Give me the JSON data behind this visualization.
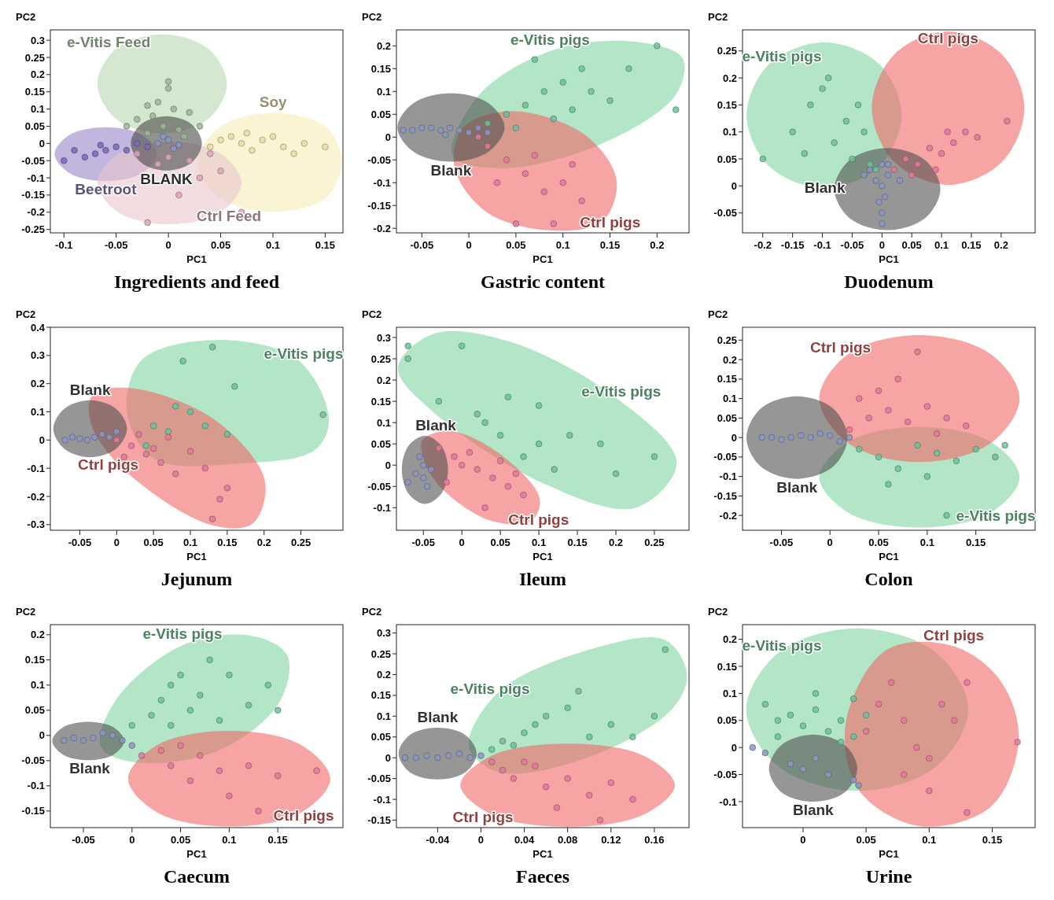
{
  "chart_data": [
    {
      "type": "scatter",
      "title": "Ingredients and feed",
      "xlabel": "PC1",
      "ylabel": "PC2",
      "xlim": [
        -0.113,
        0.167
      ],
      "ylim": [
        -0.26,
        0.33
      ],
      "xticks": [
        -0.1,
        -0.05,
        0,
        0.05,
        0.1,
        0.15
      ],
      "yticks": [
        -0.25,
        -0.2,
        -0.15,
        -0.1,
        -0.05,
        0,
        0.05,
        0.1,
        0.15,
        0.2,
        0.25,
        0.3
      ],
      "series": [
        {
          "type": "area",
          "name": "e-Vitis Feed",
          "color": "#b8d8b0",
          "x": [
            -0.05,
            -0.068,
            -0.05,
            -0.006,
            0.038,
            0.056,
            0.038,
            -0.006
          ],
          "values": [
            0.275,
            0.173,
            0.071,
            0.029,
            0.071,
            0.173,
            0.275,
            0.317
          ]
        },
        {
          "type": "area",
          "name": "Soy",
          "color": "#f8ecb8",
          "x": [
            0.1,
            0.049,
            0.028,
            0.049,
            0.1,
            0.151,
            0.166,
            0.151
          ],
          "values": [
            0.089,
            0.047,
            -0.055,
            -0.157,
            -0.199,
            -0.157,
            -0.055,
            0.047
          ]
        },
        {
          "type": "area",
          "name": "Beetroot",
          "color": "#9b86c8",
          "x": [
            -0.06,
            -0.025,
            -0.011,
            -0.025,
            -0.06,
            -0.095,
            -0.109,
            -0.095
          ],
          "values": [
            -0.109,
            -0.086,
            -0.031,
            0.024,
            0.047,
            0.024,
            -0.031,
            -0.086
          ]
        },
        {
          "type": "area",
          "name": "Ctrl Feed",
          "color": "#e8c4cc",
          "x": [
            0.05,
            0.07,
            0.05,
            0.001,
            -0.048,
            -0.068,
            -0.048,
            0.001
          ],
          "values": [
            -0.2,
            -0.115,
            -0.03,
            0.005,
            -0.03,
            -0.115,
            -0.2,
            -0.235
          ]
        },
        {
          "type": "area",
          "name": "BLANK",
          "color": "#4a4a4a",
          "x": [
            -0.002,
            0.022,
            0.032,
            0.022,
            -0.002,
            -0.026,
            -0.036,
            -0.026
          ],
          "values": [
            -0.079,
            -0.056,
            0,
            0.056,
            0.079,
            0.056,
            0,
            -0.056
          ]
        },
        {
          "marker": "circle",
          "color": "#9fb49a",
          "x": [
            -0.01,
            0,
            -0.015,
            0.005,
            -0.03,
            0.02,
            -0.005,
            0.01,
            -0.02,
            0.03,
            -0.04,
            0,
            -0.02,
            0.015
          ],
          "values": [
            0.12,
            0.16,
            0.08,
            0.1,
            0.07,
            0.09,
            0.05,
            0.04,
            0.03,
            0.05,
            0.05,
            0.18,
            0.11,
            0.02
          ]
        },
        {
          "marker": "circle",
          "color": "#e6dca8",
          "x": [
            0.05,
            0.07,
            0.09,
            0.11,
            0.13,
            0.08,
            0.06,
            0.1,
            0.12,
            0.15,
            0.04,
            0.075
          ],
          "values": [
            0.01,
            0,
            0.01,
            -0.01,
            0,
            -0.02,
            0.02,
            0.02,
            -0.03,
            -0.01,
            -0.01,
            0.03
          ]
        },
        {
          "marker": "circle",
          "color": "#7a68b8",
          "x": [
            -0.1,
            -0.08,
            -0.07,
            -0.06,
            -0.05,
            -0.04,
            -0.03,
            -0.09,
            -0.065,
            -0.02
          ],
          "values": [
            -0.05,
            -0.04,
            -0.03,
            -0.02,
            -0.01,
            -0.02,
            0,
            -0.02,
            -0.005,
            -0.01
          ]
        },
        {
          "marker": "circle",
          "color": "#d8a8b8",
          "x": [
            -0.02,
            0.01,
            0.03,
            -0.01,
            0.02,
            0.05,
            0.07,
            -0.03,
            0,
            0.04
          ],
          "values": [
            -0.23,
            -0.15,
            -0.1,
            -0.06,
            -0.05,
            -0.08,
            -0.2,
            -0.03,
            -0.04,
            -0.03
          ]
        },
        {
          "marker": "circle",
          "color": "#8c95c0",
          "x": [
            -0.01,
            0,
            0.01,
            -0.005,
            0.005
          ],
          "values": [
            0,
            0.01,
            -0.005,
            0.02,
            -0.015
          ]
        }
      ]
    },
    {
      "type": "scatter",
      "title": "Gastric content",
      "xlabel": "PC1",
      "ylabel": "PC2",
      "xlim": [
        -0.077,
        0.234
      ],
      "ylim": [
        -0.21,
        0.235
      ],
      "xticks": [
        -0.05,
        0,
        0.05,
        0.1,
        0.15,
        0.2
      ],
      "yticks": [
        -0.2,
        -0.15,
        -0.1,
        -0.05,
        0,
        0.05,
        0.1,
        0.15,
        0.2
      ],
      "series": [
        {
          "type": "area",
          "name": "e-Vitis pigs",
          "color": "#7fd6a0",
          "x": [
            0.09,
            0.011,
            -0.017,
            0.037,
            0.142,
            0.22,
            0.227,
            0.177
          ],
          "values": [
            0.191,
            0.093,
            -0.041,
            -0.068,
            -0.014,
            0.093,
            0.173,
            0.209
          ]
        },
        {
          "type": "area",
          "name": "Ctrl pigs",
          "color": "#f06868",
          "x": [
            0.142,
            0.09,
            0.02,
            -0.015,
            -0.006,
            0.046,
            0.124,
            0.157
          ],
          "values": [
            -0.184,
            -0.205,
            -0.166,
            -0.068,
            0.021,
            0.057,
            0.004,
            -0.095
          ]
        },
        {
          "type": "area",
          "name": "Blank",
          "color": "#505050",
          "x": [
            -0.019,
            0.021,
            0.038,
            0.021,
            -0.019,
            -0.059,
            -0.076,
            -0.059
          ],
          "values": [
            -0.054,
            -0.032,
            0.021,
            0.074,
            0.096,
            0.074,
            0.021,
            -0.032
          ]
        },
        {
          "marker": "circle",
          "color": "#8c95c0",
          "x": [
            -0.07,
            -0.06,
            -0.05,
            -0.04,
            -0.03,
            -0.02,
            -0.01,
            0,
            0.01,
            -0.025,
            0.02
          ],
          "values": [
            0.015,
            0.015,
            0.02,
            0.02,
            0.015,
            0.02,
            0.015,
            0.01,
            0.02,
            0.005,
            0.01
          ]
        },
        {
          "marker": "circle",
          "color": "#6fbf9a",
          "x": [
            0.02,
            0.04,
            0.06,
            0.08,
            0.1,
            0.13,
            0.15,
            0.17,
            0.2,
            0.22,
            0.12,
            0.09,
            0.05,
            0.11,
            0.07
          ],
          "values": [
            0.03,
            0.05,
            0.07,
            0.1,
            0.12,
            0.1,
            0.08,
            0.15,
            0.2,
            0.06,
            0.15,
            0.04,
            0.02,
            0.06,
            0.17
          ]
        },
        {
          "marker": "circle",
          "color": "#e07a9a",
          "x": [
            0.02,
            0.04,
            0.06,
            0.08,
            0.1,
            0.12,
            0.05,
            0.09,
            0.03,
            0.07,
            0.01,
            0.11
          ],
          "values": [
            -0.02,
            -0.05,
            -0.08,
            -0.12,
            -0.1,
            -0.14,
            -0.19,
            -0.19,
            -0.1,
            -0.04,
            0,
            -0.06
          ]
        }
      ]
    },
    {
      "type": "scatter",
      "title": "Duodenum",
      "xlabel": "PC1",
      "ylabel": "PC2",
      "xlim": [
        -0.234,
        0.257
      ],
      "ylim": [
        -0.087,
        0.289
      ],
      "xticks": [
        -0.2,
        -0.15,
        -0.1,
        -0.05,
        0,
        0.05,
        0.1,
        0.15,
        0.2
      ],
      "yticks": [
        -0.05,
        0,
        0.05,
        0.1,
        0.15,
        0.2,
        0.25
      ],
      "series": [
        {
          "type": "area",
          "name": "e-Vitis pigs",
          "color": "#7fd6a0",
          "x": [
            -0.189,
            -0.227,
            -0.189,
            -0.097,
            -0.005,
            0.033,
            -0.005,
            -0.097
          ],
          "values": [
            0.226,
            0.131,
            0.036,
            -0.004,
            0.036,
            0.131,
            0.226,
            0.266
          ]
        },
        {
          "type": "area",
          "name": "Ctrl pigs",
          "color": "#f06868",
          "x": [
            0.111,
            0.021,
            -0.017,
            0.021,
            0.111,
            0.201,
            0.239,
            0.201
          ],
          "values": [
            0.286,
            0.244,
            0.144,
            0.044,
            0.002,
            0.044,
            0.144,
            0.244
          ]
        },
        {
          "type": "area",
          "name": "Blank",
          "color": "#505050",
          "x": [
            -0.08,
            -0.054,
            0.009,
            0.072,
            0.098,
            0.072,
            0.009,
            -0.054
          ],
          "values": [
            -0.006,
            -0.06,
            -0.082,
            -0.06,
            -0.006,
            0.048,
            0.07,
            0.048
          ]
        },
        {
          "marker": "circle",
          "color": "#8c95c0",
          "x": [
            0,
            0,
            -0.005,
            0.005,
            0,
            -0.01,
            0.01,
            -0.02,
            0.01,
            0,
            -0.03,
            0.03
          ],
          "values": [
            -0.07,
            -0.05,
            -0.03,
            -0.02,
            0,
            0.01,
            0.02,
            0.03,
            0.04,
            0.04,
            0.02,
            0.01
          ]
        },
        {
          "marker": "circle",
          "color": "#6fbf9a",
          "x": [
            -0.2,
            -0.15,
            -0.12,
            -0.1,
            -0.08,
            -0.06,
            -0.05,
            -0.03,
            -0.02,
            -0.09,
            -0.13,
            -0.04,
            -0.01
          ],
          "values": [
            0.05,
            0.1,
            0.15,
            0.18,
            0.08,
            0.12,
            0.05,
            0.1,
            0.04,
            0.2,
            0.06,
            0.15,
            0.03
          ]
        },
        {
          "marker": "circle",
          "color": "#e07a9a",
          "x": [
            0.02,
            0.04,
            0.06,
            0.08,
            0.1,
            0.12,
            0.14,
            0.16,
            0.21,
            0.05,
            0.09,
            0.11
          ],
          "values": [
            0.03,
            0.05,
            0.04,
            0.07,
            0.06,
            0.08,
            0.1,
            0.09,
            0.12,
            0.02,
            0.03,
            0.1
          ]
        }
      ]
    },
    {
      "type": "scatter",
      "title": "Jejunum",
      "xlabel": "PC1",
      "ylabel": "PC2",
      "xlim": [
        -0.09,
        0.307
      ],
      "ylim": [
        -0.32,
        0.4
      ],
      "xticks": [
        -0.05,
        0,
        0.05,
        0.1,
        0.15,
        0.2,
        0.25
      ],
      "yticks": [
        -0.3,
        -0.2,
        -0.1,
        0,
        0.1,
        0.2,
        0.3,
        0.4
      ],
      "series": [
        {
          "type": "area",
          "name": "e-Vitis pigs",
          "color": "#7fd6a0",
          "x": [
            0.246,
            0.134,
            0.034,
            0.014,
            0.051,
            0.168,
            0.268,
            0.288
          ],
          "values": [
            0.284,
            0.355,
            0.284,
            0.101,
            -0.067,
            -0.083,
            -0.037,
            0.07
          ]
        },
        {
          "type": "area",
          "name": "Ctrl pigs",
          "color": "#f06868",
          "x": [
            0.001,
            -0.036,
            -0.032,
            0.023,
            0.134,
            0.201,
            0.184,
            0.123
          ],
          "values": [
            -0.083,
            0.07,
            0.162,
            0.183,
            0.07,
            -0.144,
            -0.297,
            -0.297
          ]
        },
        {
          "type": "area",
          "name": "Blank",
          "color": "#505050",
          "x": [
            -0.036,
            -0.071,
            -0.086,
            -0.071,
            -0.036,
            -0.001,
            0.014,
            -0.001
          ],
          "values": [
            0.141,
            0.111,
            0.04,
            -0.031,
            -0.061,
            -0.031,
            0.04,
            0.111
          ]
        },
        {
          "marker": "circle",
          "color": "#8c95c0",
          "x": [
            -0.07,
            -0.06,
            -0.04,
            -0.03,
            -0.02,
            -0.01,
            0,
            -0.05
          ],
          "values": [
            0,
            0.01,
            0,
            0.01,
            0.02,
            0.01,
            0.03,
            0.005
          ]
        },
        {
          "marker": "circle",
          "color": "#6fbf9a",
          "x": [
            0.05,
            0.09,
            0.13,
            0.16,
            0.28,
            0.1,
            0.07,
            0.12,
            0.15,
            0.04,
            0.08
          ],
          "values": [
            0.05,
            0.28,
            0.33,
            0.19,
            0.09,
            0.1,
            0.03,
            0.05,
            0.02,
            -0.02,
            0.12
          ]
        },
        {
          "marker": "circle",
          "color": "#e07a9a",
          "x": [
            0,
            0.02,
            0.04,
            0.03,
            0.06,
            0.08,
            0.1,
            0.12,
            0.15,
            0.14,
            0.05,
            0.01,
            0.07,
            0.13
          ],
          "values": [
            0,
            -0.02,
            -0.05,
            0.02,
            -0.08,
            -0.12,
            -0.04,
            -0.1,
            -0.17,
            -0.21,
            -0.03,
            -0.06,
            0.01,
            -0.28
          ]
        }
      ]
    },
    {
      "type": "scatter",
      "title": "Ileum",
      "xlabel": "PC1",
      "ylabel": "PC2",
      "xlim": [
        -0.085,
        0.295
      ],
      "ylim": [
        -0.153,
        0.324
      ],
      "xticks": [
        -0.05,
        0,
        0.05,
        0.1,
        0.15,
        0.2,
        0.25
      ],
      "yticks": [
        -0.1,
        -0.05,
        0,
        0.05,
        0.1,
        0.15,
        0.2,
        0.25,
        0.3
      ],
      "series": [
        {
          "type": "area",
          "name": "e-Vitis pigs",
          "color": "#7fd6a0",
          "x": [
            0.195,
            0.279,
            0.226,
            0.111,
            -0.036,
            -0.083,
            -0.036,
            0.059
          ],
          "values": [
            0.165,
            0.006,
            -0.1,
            -0.047,
            0.123,
            0.229,
            0.309,
            0.292
          ]
        },
        {
          "type": "area",
          "name": "Ctrl pigs",
          "color": "#f06868",
          "x": [
            0.09,
            0.038,
            -0.025,
            -0.048,
            -0.051,
            -0.015,
            0.048,
            0.101
          ],
          "values": [
            -0.131,
            -0.131,
            -0.057,
            0.006,
            0.059,
            0.08,
            0.028,
            -0.078
          ]
        },
        {
          "type": "area",
          "name": "Blank",
          "color": "#505050",
          "x": [
            -0.048,
            -0.069,
            -0.078,
            -0.069,
            -0.048,
            -0.027,
            -0.018,
            -0.027
          ],
          "values": [
            0.069,
            0.046,
            -0.011,
            -0.068,
            -0.091,
            -0.068,
            -0.011,
            0.046
          ]
        },
        {
          "marker": "circle",
          "color": "#8c95c0",
          "x": [
            -0.06,
            -0.05,
            -0.04,
            -0.05,
            -0.07,
            -0.045,
            -0.055
          ],
          "values": [
            -0.02,
            -0.03,
            -0.01,
            0,
            -0.04,
            -0.05,
            0.02
          ]
        },
        {
          "marker": "circle",
          "color": "#6fbf9a",
          "x": [
            -0.07,
            -0.07,
            0,
            -0.03,
            0.02,
            0.06,
            0.1,
            0.14,
            0.18,
            0.25,
            0.2,
            0.05,
            0.08,
            0.12,
            0.03,
            0.1
          ],
          "values": [
            0.28,
            0.25,
            0.28,
            0.15,
            0.12,
            0.16,
            0.05,
            0.07,
            0.05,
            0.02,
            -0.02,
            0.07,
            0.02,
            -0.01,
            0.1,
            0.14
          ]
        },
        {
          "marker": "circle",
          "color": "#e07a9a",
          "x": [
            -0.03,
            -0.01,
            0,
            0.02,
            0.04,
            0.06,
            0.08,
            0.03,
            0.05,
            -0.02,
            0.01,
            0.07
          ],
          "values": [
            0.04,
            0.02,
            0,
            -0.01,
            -0.03,
            -0.05,
            -0.07,
            -0.1,
            0.01,
            -0.04,
            0.03,
            -0.02
          ]
        }
      ]
    },
    {
      "type": "scatter",
      "title": "Colon",
      "xlabel": "PC1",
      "ylabel": "PC2",
      "xlim": [
        -0.09,
        0.211
      ],
      "ylim": [
        -0.238,
        0.283
      ],
      "xticks": [
        -0.05,
        0,
        0.05,
        0.1,
        0.15
      ],
      "yticks": [
        -0.2,
        -0.15,
        -0.1,
        -0.05,
        0,
        0.05,
        0.1,
        0.15,
        0.2,
        0.25
      ],
      "series": [
        {
          "type": "area",
          "name": "e-Vitis pigs",
          "color": "#7fd6a0",
          "x": [
            0.165,
            0.195,
            0.165,
            0.092,
            0.019,
            -0.011,
            0.019,
            0.092
          ],
          "values": [
            -0.193,
            -0.102,
            -0.011,
            0.027,
            -0.011,
            -0.102,
            -0.193,
            -0.231
          ]
        },
        {
          "type": "area",
          "name": "Ctrl pigs",
          "color": "#f06868",
          "x": [
            0.019,
            -0.011,
            0.019,
            0.092,
            0.165,
            0.195,
            0.165,
            0.092
          ],
          "values": [
            0.215,
            0.1,
            -0.015,
            -0.063,
            -0.015,
            0.1,
            0.215,
            0.263
          ]
        },
        {
          "type": "area",
          "name": "Blank",
          "color": "#505050",
          "x": [
            -0.034,
            0.003,
            0.018,
            0.003,
            -0.034,
            -0.071,
            -0.086,
            -0.071
          ],
          "values": [
            -0.106,
            -0.075,
            0,
            0.075,
            0.106,
            0.075,
            0,
            -0.075
          ]
        },
        {
          "marker": "circle",
          "color": "#8c95c0",
          "x": [
            -0.07,
            -0.06,
            -0.05,
            -0.04,
            -0.03,
            -0.02,
            -0.01,
            0,
            0.01,
            0.02
          ],
          "values": [
            0,
            0,
            -0.005,
            0,
            0.005,
            0,
            0.01,
            0.005,
            -0.01,
            0
          ]
        },
        {
          "marker": "circle",
          "color": "#e07a9a",
          "x": [
            0.02,
            0.04,
            0.06,
            0.03,
            0.08,
            0.1,
            0.12,
            0.07,
            0.09,
            0.05,
            0.11,
            0.14
          ],
          "values": [
            0.02,
            0.05,
            0.07,
            0.1,
            0.04,
            0.08,
            0.05,
            0.15,
            0.22,
            0.12,
            0.01,
            0.03
          ]
        },
        {
          "marker": "circle",
          "color": "#6fbf9a",
          "x": [
            0.03,
            0.05,
            0.07,
            0.09,
            0.11,
            0.13,
            0.15,
            0.18,
            0.1,
            0.12,
            0.06,
            0.17
          ],
          "values": [
            -0.03,
            -0.05,
            -0.08,
            -0.02,
            -0.04,
            -0.06,
            -0.03,
            -0.02,
            -0.1,
            -0.2,
            -0.12,
            -0.05
          ]
        }
      ]
    },
    {
      "type": "scatter",
      "title": "Caecum",
      "xlabel": "PC1",
      "ylabel": "PC2",
      "xlim": [
        -0.084,
        0.217
      ],
      "ylim": [
        -0.183,
        0.22
      ],
      "xticks": [
        -0.05,
        0,
        0.05,
        0.1,
        0.15
      ],
      "yticks": [
        -0.15,
        -0.1,
        -0.05,
        0,
        0.05,
        0.1,
        0.15,
        0.2
      ],
      "series": [
        {
          "type": "area",
          "name": "e-Vitis pigs",
          "color": "#7fd6a0",
          "x": [
            0.054,
            -0.016,
            -0.032,
            0.002,
            0.089,
            0.151,
            0.16,
            0.125
          ],
          "values": [
            0.181,
            0.072,
            -0.022,
            -0.053,
            -0.03,
            0.064,
            0.158,
            0.197
          ]
        },
        {
          "type": "area",
          "name": "Ctrl pigs",
          "color": "#f06868",
          "x": [
            0.174,
            0.204,
            0.174,
            0.1,
            0.026,
            -0.004,
            0.026,
            0.1
          ],
          "values": [
            -0.153,
            -0.086,
            -0.019,
            0.009,
            -0.019,
            -0.086,
            -0.153,
            -0.181
          ]
        },
        {
          "type": "area",
          "name": "Blank",
          "color": "#505050",
          "x": [
            -0.045,
            -0.019,
            -0.008,
            -0.019,
            -0.045,
            -0.071,
            -0.082,
            -0.071
          ],
          "values": [
            -0.049,
            -0.038,
            -0.011,
            0.016,
            0.027,
            0.016,
            -0.011,
            -0.038
          ]
        },
        {
          "marker": "circle",
          "color": "#8c95c0",
          "x": [
            -0.07,
            -0.06,
            -0.05,
            -0.04,
            -0.03,
            -0.02,
            -0.01,
            0
          ],
          "values": [
            -0.01,
            -0.005,
            -0.01,
            -0.005,
            0.005,
            0,
            -0.01,
            -0.02
          ]
        },
        {
          "marker": "circle",
          "color": "#6fbf9a",
          "x": [
            0,
            0.02,
            0.03,
            0.04,
            0.05,
            0.06,
            0.07,
            0.08,
            0.1,
            0.12,
            0.14,
            0.15,
            0.04,
            0.09
          ],
          "values": [
            0.02,
            0.04,
            0.07,
            0.1,
            0.12,
            0.05,
            0.08,
            0.15,
            0.12,
            0.06,
            0.1,
            0.05,
            0.02,
            0.03
          ]
        },
        {
          "marker": "circle",
          "color": "#e07a9a",
          "x": [
            0.01,
            0.03,
            0.05,
            0.04,
            0.07,
            0.09,
            0.12,
            0.15,
            0.1,
            0.13,
            0.19,
            0.06
          ],
          "values": [
            -0.04,
            -0.03,
            -0.02,
            -0.06,
            -0.04,
            -0.07,
            -0.06,
            -0.08,
            -0.12,
            -0.15,
            -0.07,
            -0.09
          ]
        }
      ]
    },
    {
      "type": "scatter",
      "title": "Faeces",
      "xlabel": "PC1",
      "ylabel": "PC2",
      "xlim": [
        -0.078,
        0.192
      ],
      "ylim": [
        -0.168,
        0.32
      ],
      "xticks": [
        -0.04,
        0,
        0.04,
        0.08,
        0.12,
        0.16
      ],
      "yticks": [
        -0.15,
        -0.1,
        -0.05,
        0,
        0.05,
        0.1,
        0.15,
        0.2,
        0.25,
        0.3
      ],
      "series": [
        {
          "type": "area",
          "name": "e-Vitis pigs",
          "color": "#7fd6a0",
          "x": [
            0.017,
            -0.011,
            0.017,
            0.104,
            0.177,
            0.19,
            0.17,
            0.104
          ],
          "values": [
            0.16,
            0.027,
            -0.035,
            0.006,
            0.119,
            0.201,
            0.283,
            0.263
          ]
        },
        {
          "type": "area",
          "name": "Ctrl pigs",
          "color": "#f06868",
          "x": [
            0.01,
            0.08,
            0.15,
            0.179,
            0.15,
            0.08,
            0.01,
            -0.019
          ],
          "values": [
            -0.137,
            -0.166,
            -0.137,
            -0.066,
            0.005,
            0.034,
            0.005,
            -0.066
          ]
        },
        {
          "type": "area",
          "name": "Blank",
          "color": "#505050",
          "x": [
            -0.04,
            -0.066,
            -0.076,
            -0.066,
            -0.04,
            -0.014,
            -0.004,
            -0.014
          ],
          "values": [
            0.072,
            0.054,
            0.01,
            -0.034,
            -0.052,
            -0.034,
            0.01,
            0.054
          ]
        },
        {
          "marker": "circle",
          "color": "#8c95c0",
          "x": [
            -0.07,
            -0.06,
            -0.05,
            -0.04,
            -0.03,
            -0.02,
            -0.01,
            0
          ],
          "values": [
            0,
            0,
            0.005,
            0,
            0.005,
            0.01,
            0,
            0.005
          ]
        },
        {
          "marker": "circle",
          "color": "#6fbf9a",
          "x": [
            0.01,
            0.02,
            0.04,
            0.05,
            0.06,
            0.08,
            0.1,
            0.12,
            0.14,
            0.16,
            0.17,
            0.09,
            0.03
          ],
          "values": [
            0.02,
            0.04,
            0.06,
            0.08,
            0.1,
            0.12,
            0.05,
            0.08,
            0.05,
            0.1,
            0.26,
            0.16,
            0.03
          ]
        },
        {
          "marker": "circle",
          "color": "#e07a9a",
          "x": [
            0.01,
            0.02,
            0.03,
            0.05,
            0.06,
            0.08,
            0.1,
            0.12,
            0.14,
            0.07,
            0.11,
            0.04
          ],
          "values": [
            -0.01,
            -0.03,
            -0.05,
            -0.02,
            -0.07,
            -0.05,
            -0.09,
            -0.06,
            -0.1,
            -0.12,
            -0.15,
            -0.01
          ]
        }
      ]
    },
    {
      "type": "scatter",
      "title": "Urine",
      "xlabel": "PC1",
      "ylabel": "PC2",
      "xlim": [
        -0.048,
        0.184
      ],
      "ylim": [
        -0.148,
        0.227
      ],
      "xticks": [
        0,
        0.05,
        0.1,
        0.15
      ],
      "yticks": [
        -0.1,
        -0.05,
        0,
        0.05,
        0.1,
        0.15,
        0.2
      ],
      "series": [
        {
          "type": "area",
          "name": "e-Vitis pigs",
          "color": "#7fd6a0",
          "x": [
            -0.019,
            -0.045,
            -0.019,
            0.043,
            0.105,
            0.131,
            0.105,
            0.043
          ],
          "values": [
            0.176,
            0.07,
            -0.036,
            -0.08,
            -0.036,
            0.07,
            0.176,
            0.22
          ]
        },
        {
          "type": "area",
          "name": "Ctrl pigs",
          "color": "#f06868",
          "x": [
            0.118,
            0.066,
            0.034,
            0.044,
            0.092,
            0.149,
            0.171,
            0.156
          ],
          "values": [
            0.188,
            0.18,
            0.047,
            -0.078,
            -0.145,
            -0.109,
            0.016,
            0.125
          ]
        },
        {
          "type": "area",
          "name": "Blank",
          "color": "#505050",
          "x": [
            0.008,
            0.033,
            0.043,
            0.033,
            0.008,
            -0.017,
            -0.027,
            -0.017
          ],
          "values": [
            -0.1,
            -0.083,
            -0.039,
            0.005,
            0.024,
            0.005,
            -0.039,
            -0.083
          ]
        },
        {
          "marker": "circle",
          "color": "#8c95c0",
          "x": [
            -0.04,
            -0.03,
            -0.01,
            0,
            0.02,
            0.04,
            0.044,
            0.01
          ],
          "values": [
            0,
            -0.01,
            -0.03,
            -0.04,
            -0.05,
            -0.06,
            -0.07,
            -0.02
          ]
        },
        {
          "marker": "circle",
          "color": "#6fbf9a",
          "x": [
            -0.03,
            -0.02,
            -0.01,
            0,
            0.01,
            0.02,
            0.03,
            0.04,
            0.05,
            0.01,
            0.03,
            -0.02,
            0.04
          ],
          "values": [
            0.08,
            0.05,
            0.06,
            0.04,
            0.07,
            0.03,
            0.05,
            0.02,
            0.06,
            0.1,
            0.01,
            0.02,
            0.09
          ]
        },
        {
          "marker": "circle",
          "color": "#e07a9a",
          "x": [
            0.05,
            0.06,
            0.07,
            0.08,
            0.09,
            0.1,
            0.11,
            0.12,
            0.13,
            0.17,
            0.1,
            0.13,
            0.08
          ],
          "values": [
            0.03,
            0.08,
            0.12,
            0.05,
            0,
            -0.02,
            0.08,
            0.05,
            0.12,
            0.01,
            -0.08,
            -0.12,
            -0.05
          ]
        }
      ]
    }
  ]
}
